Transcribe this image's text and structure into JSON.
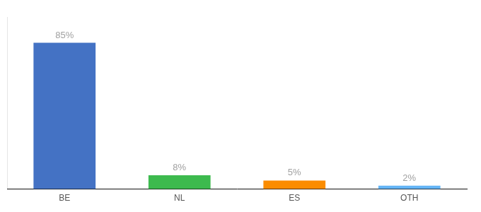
{
  "chart_data": {
    "type": "bar",
    "categories": [
      "BE",
      "NL",
      "ES",
      "OTH"
    ],
    "values": [
      85,
      8,
      5,
      2
    ],
    "value_labels": [
      "85%",
      "8%",
      "5%",
      "2%"
    ],
    "colors": [
      "#4472c4",
      "#3dba4e",
      "#fb8c00",
      "#64b5f6"
    ],
    "ylim": [
      0,
      100
    ],
    "grid": false,
    "data_labels": true,
    "tick_labels": "x"
  }
}
